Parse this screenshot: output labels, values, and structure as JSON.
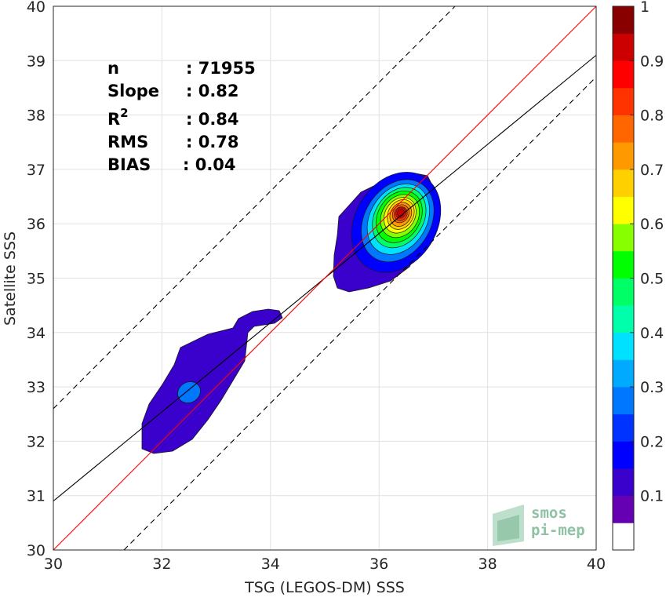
{
  "chart_data": {
    "type": "scatter",
    "subtype": "density-contour",
    "xlabel": "TSG (LEGOS-DM) SSS",
    "ylabel": "Satellite SSS",
    "xlim": [
      30,
      40
    ],
    "ylim": [
      30,
      40
    ],
    "x_ticks": [
      "30",
      "32",
      "34",
      "36",
      "38",
      "40"
    ],
    "y_ticks": [
      "30",
      "31",
      "32",
      "33",
      "34",
      "35",
      "36",
      "37",
      "38",
      "39",
      "40"
    ],
    "grid": true,
    "stats": [
      {
        "label": "n",
        "value": ": 71955"
      },
      {
        "label": "Slope",
        "value": ": 0.82"
      },
      {
        "label": "R",
        "sup": "2",
        "value": ": 0.84"
      },
      {
        "label": "RMS",
        "value": ": 0.78"
      },
      {
        "label": "BIAS",
        "value": ": 0.04"
      }
    ],
    "lines": {
      "identity": {
        "slope": 1,
        "intercept": 0,
        "color": "#ff0000"
      },
      "regression": {
        "slope": 0.82,
        "intercept": 6.3,
        "color": "#000000"
      },
      "upper_bound": {
        "slope": 1,
        "intercept": 2.6,
        "style": "dashed"
      },
      "lower_bound": {
        "slope": 1,
        "intercept": -1.3,
        "style": "dashed"
      }
    },
    "density_peak": {
      "x": 36.4,
      "y": 36.2,
      "value": 1
    },
    "secondary_peak": {
      "x": 32.5,
      "y": 32.9,
      "value": 0.2
    },
    "colorbar": {
      "min": 0,
      "max": 1,
      "tick_labels": [
        "0.1",
        "0.2",
        "0.3",
        "0.4",
        "0.5",
        "0.6",
        "0.7",
        "0.8",
        "0.9",
        "1"
      ],
      "colors": [
        "#ffffff",
        "#6600b3",
        "#3a00cc",
        "#0000ff",
        "#0033ff",
        "#0077ff",
        "#00aaff",
        "#00e0ff",
        "#00ffaa",
        "#00ff66",
        "#00ff00",
        "#88ff00",
        "#ffff00",
        "#ffd000",
        "#ff9900",
        "#ff6600",
        "#ff3300",
        "#ff0000",
        "#cc0000",
        "#880000"
      ]
    }
  },
  "logo": {
    "line1": "smos",
    "line2": "pi-mep"
  }
}
